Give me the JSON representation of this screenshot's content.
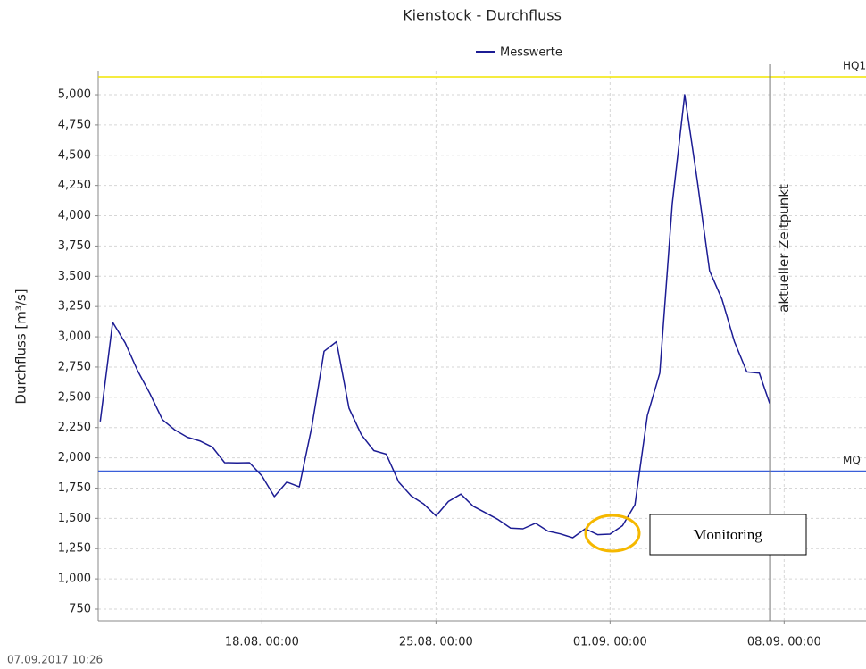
{
  "chart_data": {
    "type": "line",
    "title": "Kienstock - Durchfluss",
    "y_label": "Durchfluss [m³/s]",
    "x": [
      "11.08. 12:00",
      "12.08. 00:00",
      "12.08. 12:00",
      "13.08. 00:00",
      "13.08. 12:00",
      "14.08. 00:00",
      "14.08. 12:00",
      "15.08. 00:00",
      "15.08. 12:00",
      "16.08. 00:00",
      "16.08. 12:00",
      "17.08. 00:00",
      "17.08. 12:00",
      "18.08. 00:00",
      "18.08. 12:00",
      "19.08. 00:00",
      "19.08. 12:00",
      "20.08. 00:00",
      "20.08. 12:00",
      "21.08. 00:00",
      "21.08. 12:00",
      "22.08. 00:00",
      "22.08. 12:00",
      "23.08. 00:00",
      "23.08. 12:00",
      "24.08. 00:00",
      "24.08. 12:00",
      "25.08. 00:00",
      "25.08. 12:00",
      "26.08. 00:00",
      "26.08. 12:00",
      "27.08. 00:00",
      "27.08. 12:00",
      "28.08. 00:00",
      "28.08. 12:00",
      "29.08. 00:00",
      "29.08. 12:00",
      "30.08. 00:00",
      "30.08. 12:00",
      "31.08. 00:00",
      "31.08. 12:00",
      "01.09. 00:00",
      "01.09. 12:00",
      "02.09. 00:00",
      "02.09. 12:00",
      "03.09. 00:00",
      "03.09. 12:00",
      "04.09. 00:00",
      "04.09. 12:00",
      "05.09. 00:00",
      "05.09. 12:00",
      "06.09. 00:00",
      "06.09. 12:00",
      "07.09. 00:00",
      "07.09. 10:00"
    ],
    "series": [
      {
        "name": "Messwerte",
        "color": "#1c1c94",
        "values": [
          2300,
          3120,
          2950,
          2720,
          2530,
          2315,
          2230,
          2170,
          2140,
          2090,
          1960,
          1958,
          1960,
          1850,
          1680,
          1800,
          1760,
          2250,
          2880,
          2960,
          2410,
          2190,
          2060,
          2030,
          1800,
          1686,
          1620,
          1520,
          1640,
          1700,
          1600,
          1545,
          1490,
          1420,
          1414,
          1460,
          1395,
          1372,
          1340,
          1414,
          1365,
          1370,
          1440,
          1613,
          2350,
          2700,
          4100,
          5000,
          4300,
          3545,
          3310,
          2960,
          2710,
          2700,
          2450
        ]
      }
    ],
    "xlim": [
      "11.08. 10:00",
      "11.09. 07:00"
    ],
    "xticks": [
      "18.08. 00:00",
      "25.08. 00:00",
      "01.09. 00:00",
      "08.09. 00:00"
    ],
    "ylim": [
      654,
      5192
    ],
    "yticks": [
      750,
      {
        "value": 1000,
        "label": "1,000"
      },
      {
        "value": 1250,
        "label": "1,250"
      },
      {
        "value": 1500,
        "label": "1,500"
      },
      {
        "value": 1750,
        "label": "1,750"
      },
      {
        "value": 2000,
        "label": "2,000"
      },
      {
        "value": 2250,
        "label": "2,250"
      },
      {
        "value": 2500,
        "label": "2,500"
      },
      {
        "value": 2750,
        "label": "2,750"
      },
      {
        "value": 3000,
        "label": "3,000"
      },
      {
        "value": 3250,
        "label": "3,250"
      },
      {
        "value": 3500,
        "label": "3,500"
      },
      {
        "value": 3750,
        "label": "3,750"
      },
      {
        "value": 4000,
        "label": "4,000"
      },
      {
        "value": 4250,
        "label": "4,250"
      },
      {
        "value": 4500,
        "label": "4,500"
      },
      {
        "value": 4750,
        "label": "4,750"
      },
      {
        "value": 5000,
        "label": "5,000"
      }
    ],
    "grid": true,
    "reference_lines": [
      {
        "label": "HQ1",
        "value": 5148,
        "color": "#f2e600"
      },
      {
        "label": "MQ",
        "value": 1890,
        "color": "#3a5fd9"
      }
    ],
    "current_time": {
      "x": "07.09. 10:26",
      "label": "aktueller Zeitpunkt",
      "color": "#777777"
    },
    "annotation": "Monitoring",
    "footer": "07.09.2017  10:26"
  }
}
